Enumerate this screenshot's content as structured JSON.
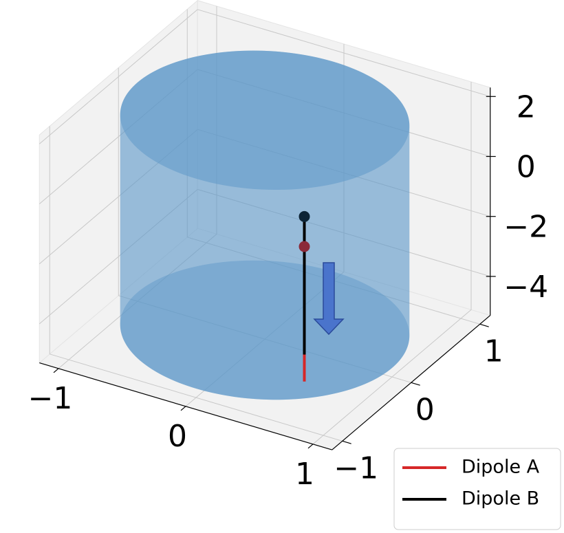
{
  "chart_data": {
    "type": "line3d",
    "xlim": [
      -1.15,
      1.15
    ],
    "ylim": [
      -1.15,
      1.15
    ],
    "zlim": [
      -5.3,
      2.3
    ],
    "xticks": [
      {
        "value": -1,
        "label": "−1"
      },
      0,
      1
    ],
    "yticks": [
      {
        "value": -1,
        "label": "−1"
      },
      0,
      1
    ],
    "zticks": [
      {
        "value": -4,
        "label": "−4"
      },
      {
        "value": -2,
        "label": "−2"
      },
      0,
      2
    ],
    "grid": true,
    "surface": {
      "type": "cylinder",
      "radius": 1,
      "z": [
        -5,
        2
      ],
      "color": "#5a96c8"
    },
    "series": [
      {
        "name": "Dipole A",
        "color": "#d62728",
        "marker_color": "#8b2a3a",
        "x": [
          0.5,
          0.5
        ],
        "y": [
          -0.35,
          -0.35
        ],
        "z": [
          -5.4,
          -0.9
        ]
      },
      {
        "name": "Dipole B",
        "color": "#000000",
        "marker_color": "#0d2436",
        "x": [
          0.5,
          0.5
        ],
        "y": [
          -0.35,
          -0.35
        ],
        "z": [
          -4.5,
          0.1
        ]
      }
    ],
    "legend": "lower right"
  }
}
